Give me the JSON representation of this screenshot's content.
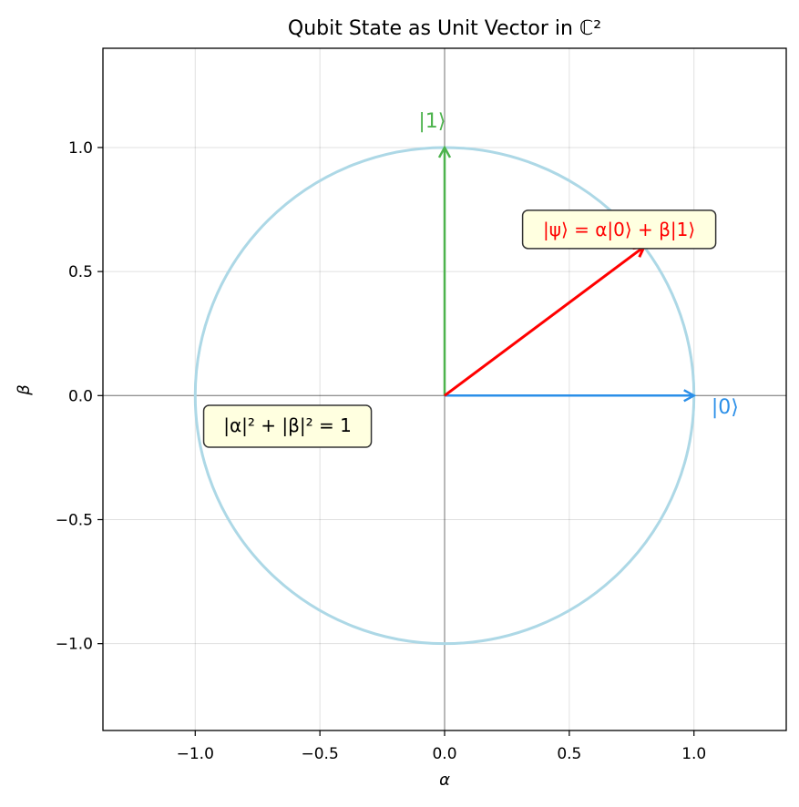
{
  "chart_data": {
    "type": "scatter",
    "title": "Qubit State as Unit Vector in ℂ²",
    "xlabel": "α",
    "ylabel": "β",
    "xlim": [
      -1.37,
      1.37
    ],
    "ylim": [
      -1.35,
      1.4
    ],
    "xticks": [
      -1.0,
      -0.5,
      0.0,
      0.5,
      1.0
    ],
    "yticks": [
      -1.0,
      -0.5,
      0.0,
      0.5,
      1.0
    ],
    "xtick_labels": [
      "−1.0",
      "−0.5",
      "0.0",
      "0.5",
      "1.0"
    ],
    "ytick_labels": [
      "−1.0",
      "−0.5",
      "0.0",
      "0.5",
      "1.0"
    ],
    "grid": true,
    "unit_circle": {
      "center": [
        0,
        0
      ],
      "radius": 1,
      "color": "#add8e6"
    },
    "vectors": [
      {
        "from": [
          0,
          0
        ],
        "to": [
          1,
          0
        ],
        "label": "|0⟩",
        "color": "#2b8fe8"
      },
      {
        "from": [
          0,
          0
        ],
        "to": [
          0,
          1
        ],
        "label": "|1⟩",
        "color": "#4db34d"
      },
      {
        "from": [
          0,
          0
        ],
        "to": [
          0.8,
          0.6
        ],
        "label": "|ψ⟩ = α|0⟩ + β|1⟩",
        "color": "#ff0000"
      }
    ],
    "vector_label_positions": [
      [
        1.07,
        -0.05
      ],
      [
        -0.05,
        1.11
      ],
      [
        0.7,
        0.67
      ]
    ],
    "annotations": [
      {
        "text": "|α|² + |β|² = 1",
        "at": [
          -0.63,
          -0.12
        ],
        "color": "#000000"
      }
    ],
    "box_fill": "#ffffe0"
  }
}
